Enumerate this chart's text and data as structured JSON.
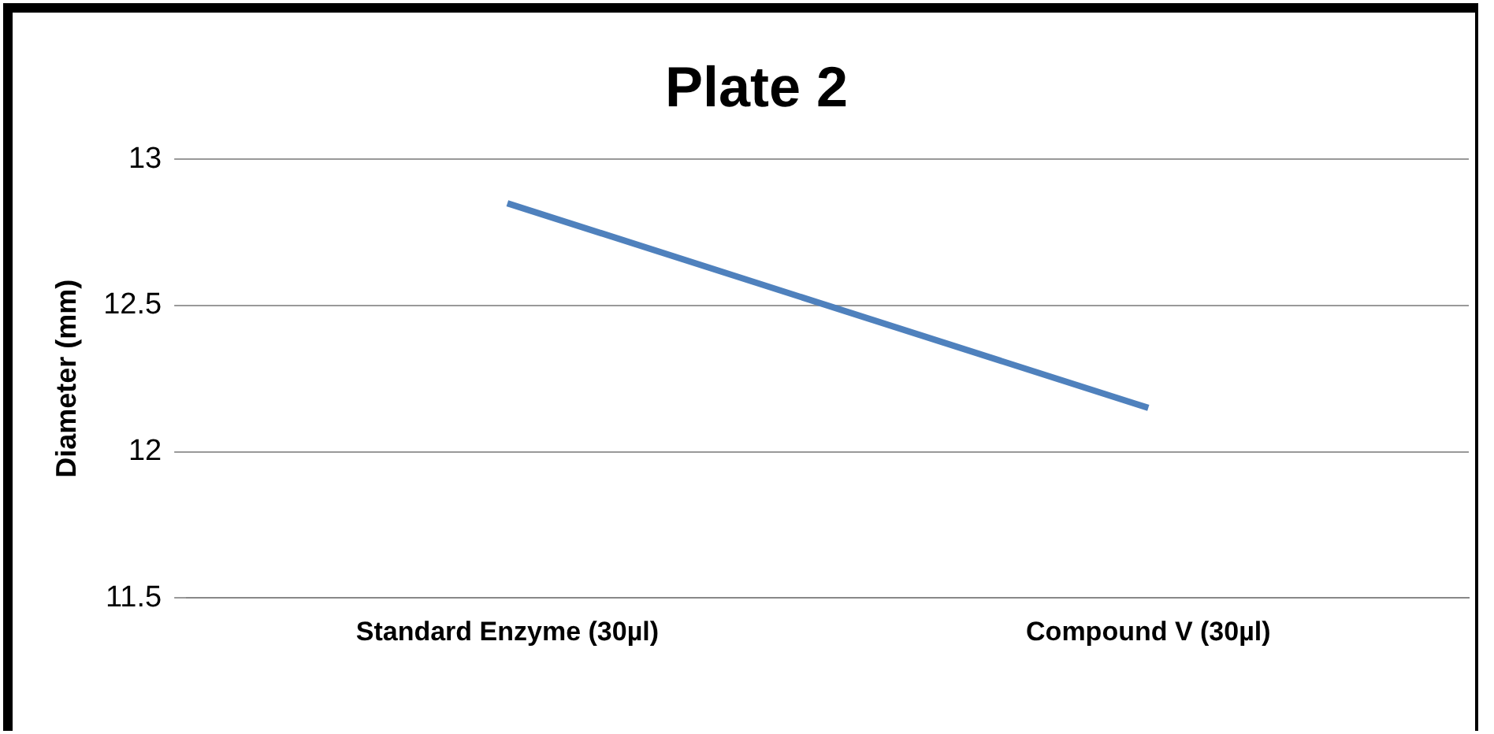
{
  "chart_data": {
    "type": "line",
    "title": "Plate 2",
    "ylabel": "Diameter (mm)",
    "categories": [
      "Standard Enzyme (30µl)",
      "Compound V (30µl)"
    ],
    "series": [
      {
        "color": "#4f81bd",
        "values": [
          12.85,
          12.15
        ]
      }
    ],
    "ylim": [
      11.5,
      13
    ],
    "yticks": [
      11.5,
      12,
      12.5,
      13
    ],
    "grid": "y",
    "legend": false,
    "marker": "none",
    "line_style": "solid"
  }
}
